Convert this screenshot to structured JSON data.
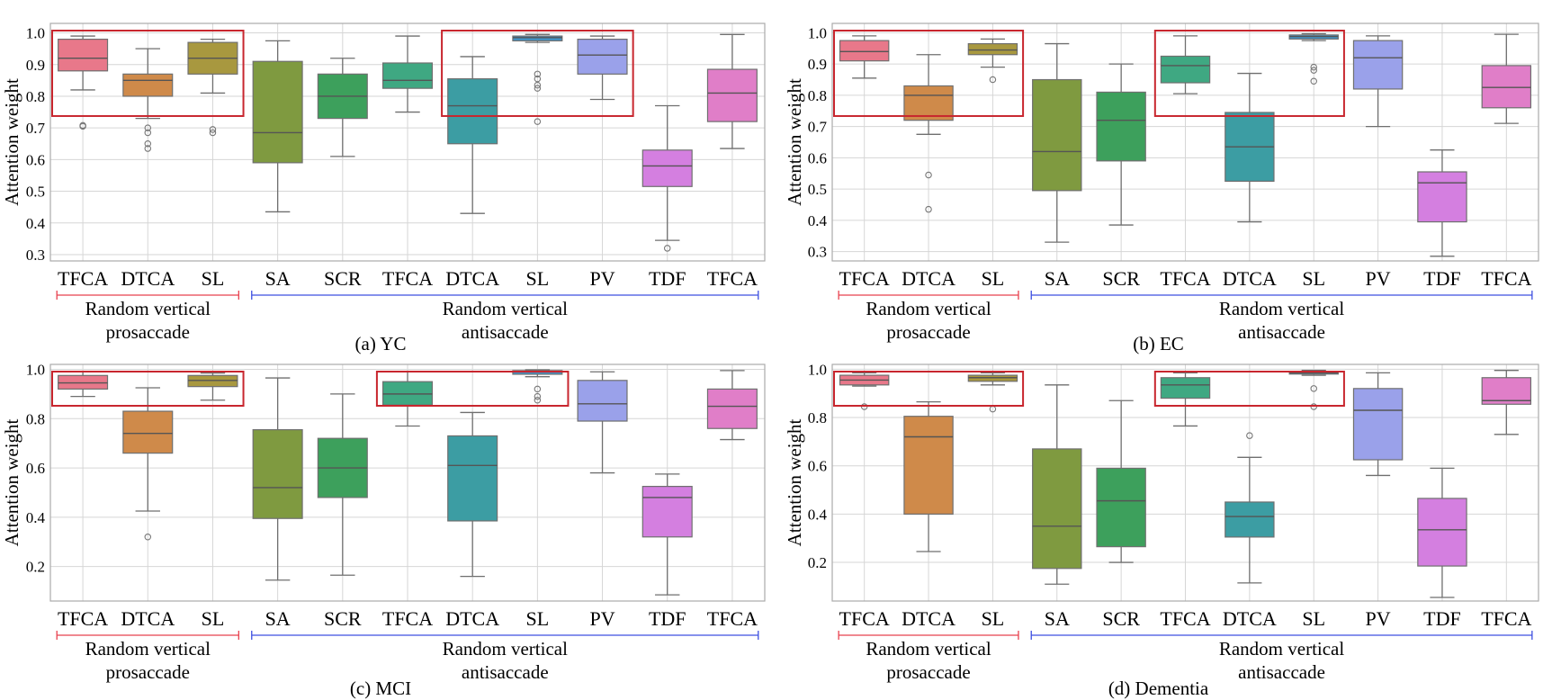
{
  "chart_data": [
    {
      "type": "box",
      "caption": "(a) YC",
      "ylabel": "Attention weight",
      "ylim": [
        0.28,
        1.03
      ],
      "yticks": [
        0.3,
        0.4,
        0.5,
        0.6,
        0.7,
        0.8,
        0.9,
        1.0
      ],
      "ytick_labels": [
        "0.3",
        "0.4",
        "0.5",
        "0.6",
        "0.7",
        "0.8",
        "0.9",
        "1.0"
      ],
      "grid": true,
      "highlight_ranges": [
        [
          0,
          2
        ],
        [
          6,
          8
        ]
      ],
      "groups": [
        {
          "label_lines": [
            "Random vertical",
            "prosaccade"
          ],
          "from": 0,
          "to": 2,
          "color": "#e8414e"
        },
        {
          "label_lines": [
            "Random vertical",
            "antisaccade"
          ],
          "from": 3,
          "to": 10,
          "color": "#3d4fe0"
        }
      ],
      "categories": [
        "TFCA",
        "DTCA",
        "SL",
        "SA",
        "SCR",
        "TFCA",
        "DTCA",
        "SL",
        "PV",
        "TDF",
        "TFCA"
      ],
      "boxes": [
        {
          "whislo": 0.82,
          "q1": 0.88,
          "med": 0.92,
          "q3": 0.98,
          "whishi": 0.99,
          "fliers": [
            0.705,
            0.708
          ]
        },
        {
          "whislo": 0.73,
          "q1": 0.8,
          "med": 0.85,
          "q3": 0.87,
          "whishi": 0.95,
          "fliers": [
            0.7,
            0.685,
            0.65,
            0.635
          ]
        },
        {
          "whislo": 0.81,
          "q1": 0.87,
          "med": 0.92,
          "q3": 0.97,
          "whishi": 0.98,
          "fliers": [
            0.695,
            0.685
          ]
        },
        {
          "whislo": 0.435,
          "q1": 0.59,
          "med": 0.685,
          "q3": 0.91,
          "whishi": 0.975,
          "fliers": []
        },
        {
          "whislo": 0.61,
          "q1": 0.73,
          "med": 0.8,
          "q3": 0.87,
          "whishi": 0.92,
          "fliers": []
        },
        {
          "whislo": 0.75,
          "q1": 0.825,
          "med": 0.85,
          "q3": 0.905,
          "whishi": 0.99,
          "fliers": []
        },
        {
          "whislo": 0.43,
          "q1": 0.65,
          "med": 0.77,
          "q3": 0.855,
          "whishi": 0.925,
          "fliers": []
        },
        {
          "whislo": 0.97,
          "q1": 0.975,
          "med": 0.985,
          "q3": 0.99,
          "whishi": 0.995,
          "fliers": [
            0.87,
            0.855,
            0.835,
            0.825,
            0.72
          ]
        },
        {
          "whislo": 0.79,
          "q1": 0.87,
          "med": 0.93,
          "q3": 0.98,
          "whishi": 0.99,
          "fliers": []
        },
        {
          "whislo": 0.345,
          "q1": 0.515,
          "med": 0.58,
          "q3": 0.63,
          "whishi": 0.77,
          "fliers": [
            0.32
          ]
        },
        {
          "whislo": 0.635,
          "q1": 0.72,
          "med": 0.81,
          "q3": 0.885,
          "whishi": 0.995,
          "fliers": []
        }
      ]
    },
    {
      "type": "box",
      "caption": "(b) EC",
      "ylabel": "Attention weight",
      "ylim": [
        0.27,
        1.03
      ],
      "yticks": [
        0.3,
        0.4,
        0.5,
        0.6,
        0.7,
        0.8,
        0.9,
        1.0
      ],
      "ytick_labels": [
        "0.3",
        "0.4",
        "0.5",
        "0.6",
        "0.7",
        "0.8",
        "0.9",
        "1.0"
      ],
      "grid": true,
      "highlight_ranges": [
        [
          0,
          2
        ],
        [
          5,
          7
        ]
      ],
      "groups": [
        {
          "label_lines": [
            "Random vertical",
            "prosaccade"
          ],
          "from": 0,
          "to": 2,
          "color": "#e8414e"
        },
        {
          "label_lines": [
            "Random vertical",
            "antisaccade"
          ],
          "from": 3,
          "to": 10,
          "color": "#3d4fe0"
        }
      ],
      "categories": [
        "TFCA",
        "DTCA",
        "SL",
        "SA",
        "SCR",
        "TFCA",
        "DTCA",
        "SL",
        "PV",
        "TDF",
        "TFCA"
      ],
      "boxes": [
        {
          "whislo": 0.855,
          "q1": 0.91,
          "med": 0.94,
          "q3": 0.975,
          "whishi": 0.99,
          "fliers": []
        },
        {
          "whislo": 0.675,
          "q1": 0.72,
          "med": 0.8,
          "q3": 0.83,
          "whishi": 0.93,
          "fliers": [
            0.545,
            0.435
          ]
        },
        {
          "whislo": 0.89,
          "q1": 0.93,
          "med": 0.945,
          "q3": 0.965,
          "whishi": 0.98,
          "fliers": [
            0.85
          ]
        },
        {
          "whislo": 0.33,
          "q1": 0.495,
          "med": 0.62,
          "q3": 0.85,
          "whishi": 0.965,
          "fliers": []
        },
        {
          "whislo": 0.385,
          "q1": 0.59,
          "med": 0.72,
          "q3": 0.81,
          "whishi": 0.9,
          "fliers": []
        },
        {
          "whislo": 0.805,
          "q1": 0.84,
          "med": 0.895,
          "q3": 0.925,
          "whishi": 0.99,
          "fliers": []
        },
        {
          "whislo": 0.395,
          "q1": 0.525,
          "med": 0.635,
          "q3": 0.745,
          "whishi": 0.87,
          "fliers": []
        },
        {
          "whislo": 0.975,
          "q1": 0.98,
          "med": 0.988,
          "q3": 0.993,
          "whishi": 0.997,
          "fliers": [
            0.89,
            0.88,
            0.845
          ]
        },
        {
          "whislo": 0.7,
          "q1": 0.82,
          "med": 0.92,
          "q3": 0.975,
          "whishi": 0.99,
          "fliers": []
        },
        {
          "whislo": 0.285,
          "q1": 0.395,
          "med": 0.52,
          "q3": 0.555,
          "whishi": 0.625,
          "fliers": []
        },
        {
          "whislo": 0.71,
          "q1": 0.76,
          "med": 0.825,
          "q3": 0.895,
          "whishi": 0.995,
          "fliers": []
        }
      ]
    },
    {
      "type": "box",
      "caption": "(c) MCI",
      "ylabel": "Attention weight",
      "ylim": [
        0.06,
        1.02
      ],
      "yticks": [
        0.2,
        0.4,
        0.6,
        0.8,
        1.0
      ],
      "ytick_labels": [
        "0.2",
        "0.4",
        "0.6",
        "0.8",
        "1.0"
      ],
      "grid": true,
      "highlight_ranges": [
        [
          0,
          2
        ],
        [
          5,
          7
        ]
      ],
      "groups": [
        {
          "label_lines": [
            "Random vertical",
            "prosaccade"
          ],
          "from": 0,
          "to": 2,
          "color": "#e8414e"
        },
        {
          "label_lines": [
            "Random vertical",
            "antisaccade"
          ],
          "from": 3,
          "to": 10,
          "color": "#3d4fe0"
        }
      ],
      "categories": [
        "TFCA",
        "DTCA",
        "SL",
        "SA",
        "SCR",
        "TFCA",
        "DTCA",
        "SL",
        "PV",
        "TDF",
        "TFCA"
      ],
      "boxes": [
        {
          "whislo": 0.89,
          "q1": 0.92,
          "med": 0.945,
          "q3": 0.975,
          "whishi": 0.99,
          "fliers": []
        },
        {
          "whislo": 0.425,
          "q1": 0.66,
          "med": 0.74,
          "q3": 0.83,
          "whishi": 0.925,
          "fliers": [
            0.32
          ]
        },
        {
          "whislo": 0.875,
          "q1": 0.93,
          "med": 0.955,
          "q3": 0.975,
          "whishi": 0.985,
          "fliers": []
        },
        {
          "whislo": 0.145,
          "q1": 0.395,
          "med": 0.52,
          "q3": 0.755,
          "whishi": 0.965,
          "fliers": []
        },
        {
          "whislo": 0.165,
          "q1": 0.48,
          "med": 0.6,
          "q3": 0.72,
          "whishi": 0.9,
          "fliers": []
        },
        {
          "whislo": 0.77,
          "q1": 0.855,
          "med": 0.9,
          "q3": 0.95,
          "whishi": 0.99,
          "fliers": []
        },
        {
          "whislo": 0.16,
          "q1": 0.385,
          "med": 0.61,
          "q3": 0.73,
          "whishi": 0.825,
          "fliers": []
        },
        {
          "whislo": 0.97,
          "q1": 0.98,
          "med": 0.99,
          "q3": 0.995,
          "whishi": 0.998,
          "fliers": [
            0.92,
            0.89,
            0.875
          ]
        },
        {
          "whislo": 0.58,
          "q1": 0.79,
          "med": 0.86,
          "q3": 0.955,
          "whishi": 0.99,
          "fliers": []
        },
        {
          "whislo": 0.085,
          "q1": 0.32,
          "med": 0.48,
          "q3": 0.525,
          "whishi": 0.575,
          "fliers": []
        },
        {
          "whislo": 0.715,
          "q1": 0.76,
          "med": 0.85,
          "q3": 0.92,
          "whishi": 0.995,
          "fliers": []
        }
      ]
    },
    {
      "type": "box",
      "caption": "(d) Dementia",
      "ylabel": "Attention weight",
      "ylim": [
        0.04,
        1.02
      ],
      "yticks": [
        0.2,
        0.4,
        0.6,
        0.8,
        1.0
      ],
      "ytick_labels": [
        "0.2",
        "0.4",
        "0.6",
        "0.8",
        "1.0"
      ],
      "grid": true,
      "highlight_ranges": [
        [
          0,
          2
        ],
        [
          5,
          7
        ]
      ],
      "groups": [
        {
          "label_lines": [
            "Random vertical",
            "prosaccade"
          ],
          "from": 0,
          "to": 2,
          "color": "#e8414e"
        },
        {
          "label_lines": [
            "Random vertical",
            "antisaccade"
          ],
          "from": 3,
          "to": 10,
          "color": "#3d4fe0"
        }
      ],
      "categories": [
        "TFCA",
        "DTCA",
        "SL",
        "SA",
        "SCR",
        "TFCA",
        "DTCA",
        "SL",
        "PV",
        "TDF",
        "TFCA"
      ],
      "boxes": [
        {
          "whislo": 0.93,
          "q1": 0.935,
          "med": 0.955,
          "q3": 0.975,
          "whishi": 0.985,
          "fliers": [
            0.845
          ]
        },
        {
          "whislo": 0.245,
          "q1": 0.4,
          "med": 0.72,
          "q3": 0.805,
          "whishi": 0.865,
          "fliers": []
        },
        {
          "whislo": 0.935,
          "q1": 0.95,
          "med": 0.965,
          "q3": 0.975,
          "whishi": 0.985,
          "fliers": [
            0.835
          ]
        },
        {
          "whislo": 0.11,
          "q1": 0.175,
          "med": 0.35,
          "q3": 0.67,
          "whishi": 0.935,
          "fliers": []
        },
        {
          "whislo": 0.2,
          "q1": 0.265,
          "med": 0.455,
          "q3": 0.59,
          "whishi": 0.87,
          "fliers": []
        },
        {
          "whislo": 0.765,
          "q1": 0.88,
          "med": 0.935,
          "q3": 0.965,
          "whishi": 0.985,
          "fliers": []
        },
        {
          "whislo": 0.115,
          "q1": 0.305,
          "med": 0.39,
          "q3": 0.45,
          "whishi": 0.635,
          "fliers": [
            0.725
          ]
        },
        {
          "whislo": 0.975,
          "q1": 0.98,
          "med": 0.985,
          "q3": 0.99,
          "whishi": 0.995,
          "fliers": [
            0.92,
            0.845
          ]
        },
        {
          "whislo": 0.56,
          "q1": 0.625,
          "med": 0.83,
          "q3": 0.92,
          "whishi": 0.985,
          "fliers": []
        },
        {
          "whislo": 0.055,
          "q1": 0.185,
          "med": 0.335,
          "q3": 0.465,
          "whishi": 0.59,
          "fliers": []
        },
        {
          "whislo": 0.73,
          "q1": 0.855,
          "med": 0.87,
          "q3": 0.965,
          "whishi": 0.995,
          "fliers": []
        }
      ]
    }
  ],
  "colors": {
    "boxes": [
      "#e8788a",
      "#cf8a4a",
      "#a8983f",
      "#7f9a40",
      "#3da05c",
      "#3fa882",
      "#3c9da3",
      "#4194c8",
      "#9aa1ea",
      "#d47fe0",
      "#e07ec8"
    ],
    "highlight": "#c8262e",
    "grid": "#d6d6d6",
    "frame": "#aaaaaa",
    "whisker": "#6f6f6f"
  }
}
